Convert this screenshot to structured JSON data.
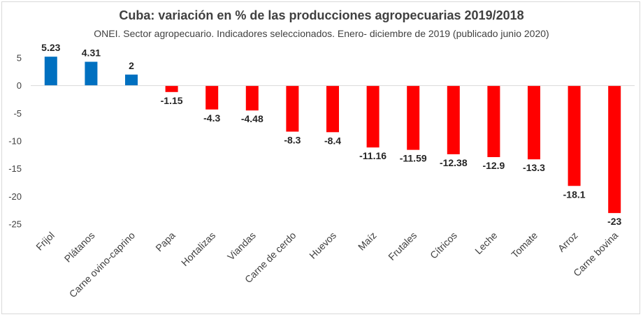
{
  "chart_data": {
    "type": "bar",
    "title": "Cuba: variación en % de las producciones agropecuarias 2019/2018",
    "subtitle": "ONEI. Sector agropecuario. Indicadores seleccionados. Enero- diciembre de 2019 (publicado junio 2020)",
    "categories": [
      "Frijol",
      "Plátanos",
      "Carne ovino-caprino",
      "Papa",
      "Hortalizas",
      "Viandas",
      "Carne de cerdo",
      "Huevos",
      "Maíz",
      "Frutales",
      "Cítricos",
      "Leche",
      "Tomate",
      "Arroz",
      "Carne bovina"
    ],
    "values": [
      5.23,
      4.31,
      2,
      -1.15,
      -4.3,
      -4.48,
      -8.3,
      -8.4,
      -11.16,
      -11.59,
      -12.38,
      -12.9,
      -13.3,
      -18.1,
      -23
    ],
    "value_labels": [
      "5.23",
      "4.31",
      "2",
      "-1.15",
      "-4.3",
      "-4.48",
      "-8.3",
      "-8.4",
      "-11.16",
      "-11.59",
      "-12.38",
      "-12.9",
      "-13.3",
      "-18.1",
      "-23"
    ],
    "ylim": [
      -25,
      5
    ],
    "yticks": [
      5,
      0,
      -5,
      -10,
      -15,
      -20,
      -25
    ],
    "ytick_labels": [
      "5",
      "0",
      "-5",
      "-10",
      "-15",
      "-20",
      "-25"
    ],
    "grid": false,
    "legend": "none",
    "colors": {
      "positive": "#0070c0",
      "negative": "#ff0000"
    },
    "xlabel": "",
    "ylabel": ""
  }
}
